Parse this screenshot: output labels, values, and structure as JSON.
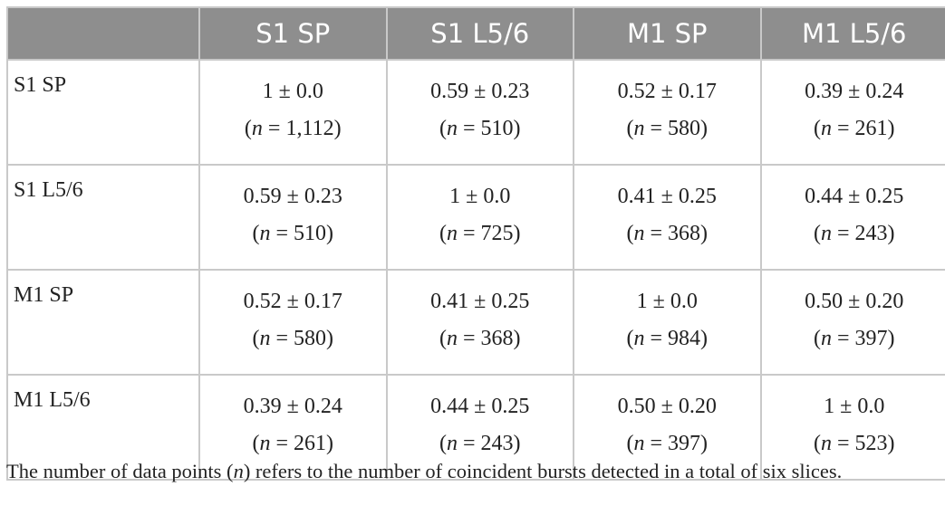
{
  "table": {
    "columns": [
      "S1 SP",
      "S1 L5/6",
      "M1 SP",
      "M1 L5/6"
    ],
    "rows": [
      {
        "label": "S1 SP",
        "cells": [
          {
            "value": "1 ± 0.0",
            "n": "(n = 1,112)"
          },
          {
            "value": "0.59 ± 0.23",
            "n": "(n = 510)"
          },
          {
            "value": "0.52 ± 0.17",
            "n": "(n = 580)"
          },
          {
            "value": "0.39 ± 0.24",
            "n": "(n = 261)"
          }
        ]
      },
      {
        "label": "S1 L5/6",
        "cells": [
          {
            "value": "0.59 ± 0.23",
            "n": "(n = 510)"
          },
          {
            "value": "1 ± 0.0",
            "n": "(n = 725)"
          },
          {
            "value": "0.41 ± 0.25",
            "n": "(n = 368)"
          },
          {
            "value": "0.44 ± 0.25",
            "n": "(n = 243)"
          }
        ]
      },
      {
        "label": "M1 SP",
        "cells": [
          {
            "value": "0.52 ± 0.17",
            "n": "(n = 580)"
          },
          {
            "value": "0.41 ± 0.25",
            "n": "(n = 368)"
          },
          {
            "value": "1 ± 0.0",
            "n": "(n = 984)"
          },
          {
            "value": "0.50 ± 0.20",
            "n": "(n = 397)"
          }
        ]
      },
      {
        "label": "M1 L5/6",
        "cells": [
          {
            "value": "0.39 ± 0.24",
            "n": "(n = 261)"
          },
          {
            "value": "0.44 ± 0.25",
            "n": "(n = 243)"
          },
          {
            "value": "0.50 ± 0.20",
            "n": "(n = 397)"
          },
          {
            "value": "1 ± 0.0",
            "n": "(n = 523)"
          }
        ]
      }
    ]
  },
  "footnote": "The number of data points (n) refers to the number of coincident bursts detected in a total of six slices."
}
